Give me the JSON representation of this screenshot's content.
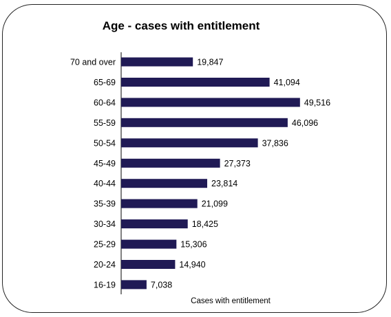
{
  "chart_data": {
    "type": "bar",
    "orientation": "horizontal",
    "title": "Age - cases with entitlement",
    "xlabel": "Cases with entitlement",
    "ylabel": "",
    "categories": [
      "70 and over",
      "65-69",
      "60-64",
      "55-59",
      "50-54",
      "45-49",
      "40-44",
      "35-39",
      "30-34",
      "25-29",
      "20-24",
      "16-19"
    ],
    "values": [
      19847,
      41094,
      49516,
      46096,
      37836,
      27373,
      23814,
      21099,
      18425,
      15306,
      14940,
      7038
    ],
    "value_labels": [
      "19,847",
      "41,094",
      "49,516",
      "46,096",
      "37,836",
      "27,373",
      "23,814",
      "21,099",
      "18,425",
      "15,306",
      "14,940",
      "7,038"
    ],
    "xlim": [
      0,
      54500
    ],
    "grid": false,
    "legend": "none",
    "bar_color": "#201A55"
  }
}
